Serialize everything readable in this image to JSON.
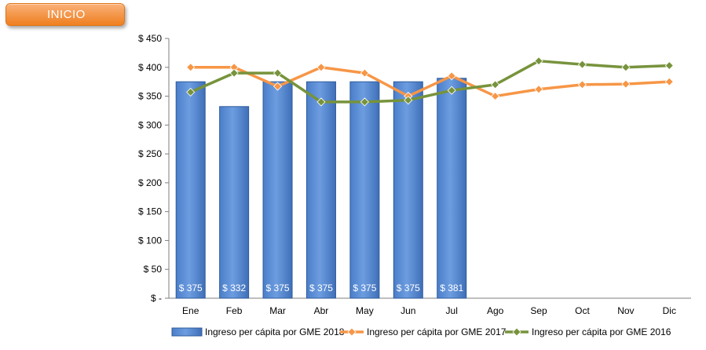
{
  "nav": {
    "inicio_label": "INICIO"
  },
  "chart_data": {
    "type": "bar",
    "categories": [
      "Ene",
      "Feb",
      "Mar",
      "Abr",
      "May",
      "Jun",
      "Jul",
      "Ago",
      "Sep",
      "Oct",
      "Nov",
      "Dic"
    ],
    "ylim": [
      0,
      450
    ],
    "yticks": [
      0,
      50,
      100,
      150,
      200,
      250,
      300,
      350,
      400,
      450
    ],
    "ytick_labels": [
      "$ -",
      "$ 50",
      "$ 100",
      "$ 150",
      "$ 200",
      "$ 250",
      "$ 300",
      "$ 350",
      "$ 400",
      "$ 450"
    ],
    "series": [
      {
        "name": "Ingreso per cápita por GME 2018",
        "type": "bar",
        "color": "#5b8fd6",
        "values": [
          375,
          332,
          375,
          375,
          375,
          375,
          381,
          null,
          null,
          null,
          null,
          null
        ],
        "data_labels": [
          "$ 375",
          "$ 332",
          "$ 375",
          "$ 375",
          "$ 375",
          "$ 375",
          "$ 381"
        ]
      },
      {
        "name": "Ingreso per cápita por GME 2017",
        "type": "line",
        "color": "#f79646",
        "values": [
          400,
          400,
          367,
          400,
          390,
          350,
          385,
          350,
          362,
          370,
          371,
          375
        ]
      },
      {
        "name": "Ingreso per cápita por GME 2016",
        "type": "line",
        "color": "#77933c",
        "values": [
          357,
          390,
          390,
          340,
          340,
          343,
          360,
          370,
          411,
          405,
          400,
          403
        ]
      }
    ],
    "legend_position": "bottom",
    "grid": false
  }
}
